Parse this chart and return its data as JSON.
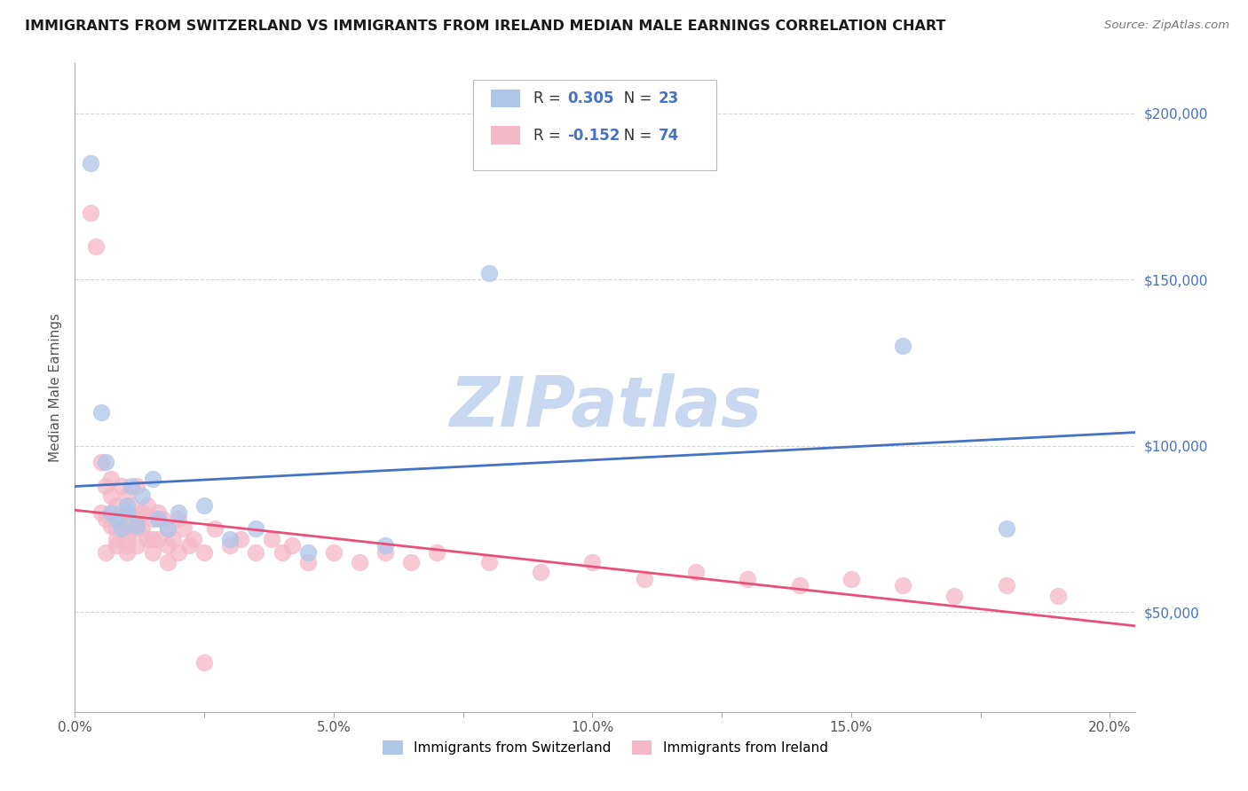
{
  "title": "IMMIGRANTS FROM SWITZERLAND VS IMMIGRANTS FROM IRELAND MEDIAN MALE EARNINGS CORRELATION CHART",
  "source": "Source: ZipAtlas.com",
  "ylabel": "Median Male Earnings",
  "xlim": [
    0.0,
    0.205
  ],
  "ylim": [
    20000,
    215000
  ],
  "yticks": [
    50000,
    100000,
    150000,
    200000
  ],
  "ytick_labels": [
    "$50,000",
    "$100,000",
    "$150,000",
    "$200,000"
  ],
  "xtick_labels": [
    "0.0%",
    "",
    "5.0%",
    "",
    "10.0%",
    "",
    "15.0%",
    "",
    "20.0%"
  ],
  "xticks": [
    0.0,
    0.025,
    0.05,
    0.075,
    0.1,
    0.125,
    0.15,
    0.175,
    0.2
  ],
  "legend_label1": "Immigrants from Switzerland",
  "legend_label2": "Immigrants from Ireland",
  "R1": 0.305,
  "N1": 23,
  "R2": -0.152,
  "N2": 74,
  "color_swiss": "#aec6e8",
  "color_ireland": "#f4b8c8",
  "line_color_swiss": "#4472c4",
  "line_color_ireland": "#e8507a",
  "watermark": "ZIPatlas",
  "watermark_color": "#c8d8f0",
  "swiss_x": [
    0.003,
    0.005,
    0.006,
    0.007,
    0.008,
    0.009,
    0.01,
    0.011,
    0.012,
    0.013,
    0.015,
    0.016,
    0.018,
    0.02,
    0.025,
    0.03,
    0.035,
    0.045,
    0.06,
    0.08,
    0.16,
    0.18,
    0.01
  ],
  "swiss_y": [
    185000,
    110000,
    95000,
    80000,
    78000,
    75000,
    82000,
    88000,
    76000,
    85000,
    90000,
    78000,
    75000,
    80000,
    82000,
    72000,
    75000,
    68000,
    70000,
    152000,
    130000,
    75000,
    80000
  ],
  "ireland_x": [
    0.003,
    0.004,
    0.005,
    0.005,
    0.006,
    0.006,
    0.007,
    0.007,
    0.007,
    0.008,
    0.008,
    0.008,
    0.009,
    0.009,
    0.009,
    0.01,
    0.01,
    0.01,
    0.01,
    0.011,
    0.011,
    0.012,
    0.012,
    0.012,
    0.013,
    0.013,
    0.014,
    0.014,
    0.015,
    0.015,
    0.016,
    0.016,
    0.017,
    0.018,
    0.018,
    0.019,
    0.02,
    0.021,
    0.022,
    0.023,
    0.025,
    0.027,
    0.03,
    0.032,
    0.035,
    0.038,
    0.04,
    0.042,
    0.045,
    0.05,
    0.055,
    0.06,
    0.065,
    0.07,
    0.08,
    0.09,
    0.1,
    0.11,
    0.12,
    0.13,
    0.14,
    0.15,
    0.16,
    0.17,
    0.18,
    0.19,
    0.006,
    0.008,
    0.01,
    0.012,
    0.015,
    0.018,
    0.02,
    0.025
  ],
  "ireland_y": [
    170000,
    160000,
    95000,
    80000,
    88000,
    78000,
    85000,
    76000,
    90000,
    75000,
    82000,
    70000,
    88000,
    80000,
    75000,
    78000,
    72000,
    85000,
    68000,
    82000,
    75000,
    88000,
    78000,
    70000,
    80000,
    75000,
    82000,
    72000,
    78000,
    68000,
    80000,
    72000,
    78000,
    75000,
    70000,
    72000,
    78000,
    75000,
    70000,
    72000,
    68000,
    75000,
    70000,
    72000,
    68000,
    72000,
    68000,
    70000,
    65000,
    68000,
    65000,
    68000,
    65000,
    68000,
    65000,
    62000,
    65000,
    60000,
    62000,
    60000,
    58000,
    60000,
    58000,
    55000,
    58000,
    55000,
    68000,
    72000,
    70000,
    75000,
    72000,
    65000,
    68000,
    35000
  ]
}
